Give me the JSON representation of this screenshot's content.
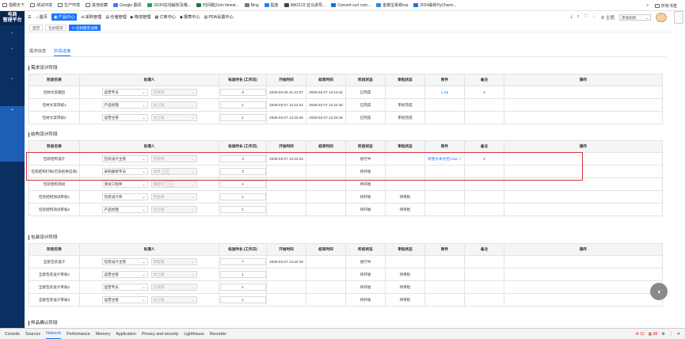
{
  "bookmarks": [
    "猎聘天下",
    "测试环境",
    "生产环境",
    "其他收藏",
    "Google 翻译",
    "JSON在线解析及格...",
    "时间戳(Unix timest...",
    "Bing",
    "掘金",
    "AMZ123 亚马逊导...",
    "Convert curl com...",
    "金蝶宝系统erp",
    "2024最新PyCharm..."
  ],
  "bookmarks_right": "所有书签",
  "logo": [
    "电商",
    "管理平台"
  ],
  "nav": [
    {
      "icon": "☰",
      "label": ""
    },
    {
      "icon": "⌂",
      "label": "首页"
    },
    {
      "icon": "▣",
      "label": "产品中心"
    },
    {
      "icon": "⇄",
      "label": "采购管理"
    },
    {
      "icon": "▤",
      "label": "仓储管理"
    },
    {
      "icon": "▶",
      "label": "物流管理"
    },
    {
      "icon": "▦",
      "label": "订单中心"
    },
    {
      "icon": "◆",
      "label": "报表中心"
    },
    {
      "icon": "▥",
      "label": "PDA设置中心"
    }
  ],
  "topright": {
    "theme": "主题",
    "select": "苹果刷新"
  },
  "tags": [
    "首页",
    "包材需求",
    "✕ 包材需求详情"
  ],
  "tabs": [
    "需求信息",
    "阶段进度"
  ],
  "headers": [
    "阶段名称",
    "处理人",
    "标准时长 (工作日)",
    "开始时间",
    "结束时间",
    "阶段状态",
    "审批状态",
    "附件",
    "备注",
    "操作"
  ],
  "sections": [
    {
      "title": "需求设计阶段",
      "show_header": true,
      "rows": [
        {
          "name": "包材文案输出",
          "role": "运营专员",
          "person": "王晓燕",
          "days": "3",
          "start": "2025-03-26 21:41:07",
          "end": "2025-03-27 14:14:42",
          "status": "已完成",
          "approval": "",
          "file": "1.zip",
          "note": "1"
        },
        {
          "name": "包材文案审核1",
          "role": "产品经理",
          "person": "吴士雄",
          "days": "1",
          "start": "2025-03-27 14:14:42",
          "end": "2025-03-27 14:22:40",
          "status": "已完成",
          "approval": "审批完成",
          "file": "",
          "note": ""
        },
        {
          "name": "包材文案审核2",
          "role": "运营主管",
          "person": "吴士雄",
          "days": "1",
          "start": "2025-03-27 14:22:40",
          "end": "2025-03-27 14:23:18",
          "status": "已完成",
          "approval": "审批完成",
          "file": "",
          "note": ""
        }
      ]
    },
    {
      "title": "结构设计阶段",
      "show_header": true,
      "rows": [
        {
          "name": "包装结构设计",
          "role": "包装设计主管",
          "person": "贾能瑞",
          "days": "3",
          "start": "2025-03-27 14:23:18",
          "end": "",
          "status": "进行中",
          "approval": "",
          "file": "新建文本文档.max",
          "note": "1"
        },
        {
          "name": "包装结构打样(可多给供应商)",
          "role": "采购跟单专员",
          "person": "李思",
          "chip": "+3",
          "days": "3",
          "start": "",
          "end": "",
          "status": "待开始",
          "approval": "",
          "file": "",
          "note": ""
        },
        {
          "name": "包装结构测试",
          "role": "测试工程师",
          "person": "谭新华",
          "chip": "+1",
          "days": "1",
          "start": "",
          "end": "",
          "status": "待开始",
          "approval": "",
          "file": "",
          "note": ""
        },
        {
          "name": "包装结构测试审核1",
          "role": "包装设计师",
          "person": "贾能瑞",
          "days": "1",
          "start": "",
          "end": "",
          "status": "待开始",
          "approval": "待审批",
          "file": "",
          "note": ""
        },
        {
          "name": "包装结构测试审核2",
          "role": "产品经理",
          "person": "吴士雄",
          "days": "1",
          "start": "",
          "end": "",
          "status": "待开始",
          "approval": "待审批",
          "file": "",
          "note": ""
        }
      ]
    },
    {
      "title": "包装设计阶段",
      "show_header": true,
      "rows": [
        {
          "name": "全套包装设计",
          "role": "包装设计主管",
          "person": "贾能瑞",
          "days": "7",
          "start": "2025-03-27 14:23:18",
          "end": "",
          "status": "进行中",
          "approval": "",
          "file": "",
          "note": ""
        },
        {
          "name": "全套包装设计审核1",
          "role": "运营主管",
          "person": "吴士雄",
          "days": "1",
          "start": "",
          "end": "",
          "status": "待开始",
          "approval": "待审批",
          "file": "",
          "note": ""
        },
        {
          "name": "全套包装设计审核2",
          "role": "运营专员",
          "person": "王晓燕",
          "days": "1",
          "start": "",
          "end": "",
          "status": "待开始",
          "approval": "待审批",
          "file": "",
          "note": ""
        },
        {
          "name": "全套包装设计审核3",
          "role": "运营主管",
          "person": "吴士雄",
          "days": "1",
          "start": "",
          "end": "",
          "status": "待开始",
          "approval": "待审批",
          "file": "",
          "note": ""
        }
      ]
    },
    {
      "title": "样品确认阶段",
      "show_header": false,
      "rows": []
    }
  ],
  "devtools": {
    "tabs": [
      "Console",
      "Sources",
      "Network",
      "Performance",
      "Memory",
      "Application",
      "Privacy and security",
      "Lighthouse",
      "Recorder"
    ],
    "active": "Network",
    "errors": "12",
    "warnings": "88"
  },
  "colors": {
    "accent": "#1677ff",
    "sidebar": "#0b2f60",
    "highlight": "#e0303b"
  }
}
